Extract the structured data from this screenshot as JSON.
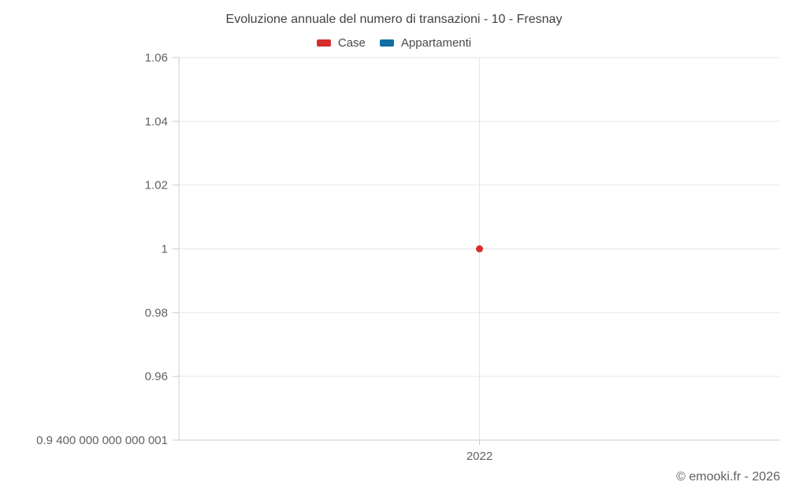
{
  "chart": {
    "title": "Evoluzione annuale del numero di transazioni - 10 - Fresnay",
    "legend": [
      {
        "label": "Case",
        "color": "#d32f2f"
      },
      {
        "label": "Appartamenti",
        "color": "#106ea5"
      }
    ],
    "footer": "© emooki.fr - 2026"
  },
  "chart_data": {
    "type": "scatter",
    "title": "Evoluzione annuale del numero di transazioni - 10 - Fresnay",
    "x_categories": [
      "2022"
    ],
    "series": [
      {
        "name": "Case",
        "color": "#d32f2f",
        "points": [
          {
            "x": "2022",
            "y": 1
          }
        ]
      },
      {
        "name": "Appartamenti",
        "color": "#106ea5",
        "points": []
      }
    ],
    "ylim": [
      0.9400000000000001,
      1.06
    ],
    "yticks": [
      {
        "value": 1.06,
        "label": "1.06"
      },
      {
        "value": 1.04,
        "label": "1.04"
      },
      {
        "value": 1.02,
        "label": "1.02"
      },
      {
        "value": 1,
        "label": "1"
      },
      {
        "value": 0.98,
        "label": "0.98"
      },
      {
        "value": 0.96,
        "label": "0.96"
      },
      {
        "value": 0.9400000000000001,
        "label": "0.9 400 000 000 000 001"
      }
    ],
    "grid": true,
    "legend_position": "top",
    "colors": {
      "grid_line": "#e6e6e6",
      "axis_line": "#cccccc",
      "tick_label": "#616161"
    }
  }
}
